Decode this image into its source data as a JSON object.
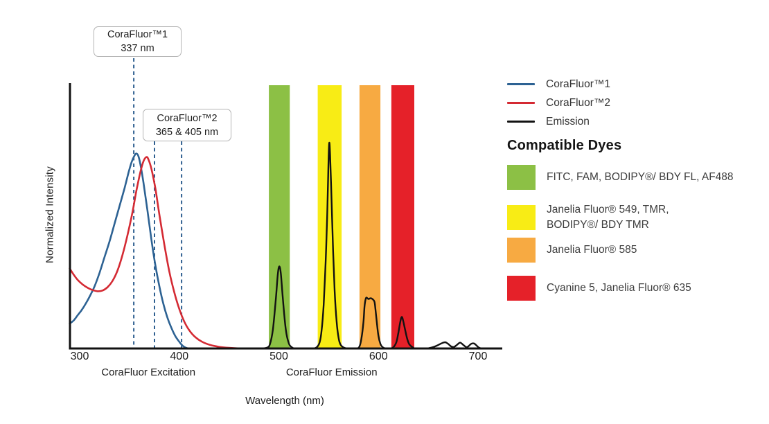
{
  "figure": {
    "type_note": "fluorescence excitation/emission spectra with dye filter bands"
  },
  "chart_data": {
    "type": "line",
    "xlabel": "Wavelength (nm)",
    "ylabel": "Normalized Intensity",
    "x_ticks": [
      300,
      400,
      500,
      600,
      700
    ],
    "xlim": [
      290,
      724
    ],
    "ylim": [
      0,
      1.28
    ],
    "grid": false,
    "region_labels": [
      {
        "text": "CoraFluor Excitation",
        "center_nm": 369
      },
      {
        "text": "CoraFluor Emission",
        "center_nm": 553
      }
    ],
    "series": [
      {
        "name": "CoraFluor™1",
        "color": "#2D6293",
        "style": "solid",
        "points": [
          [
            290,
            0.12
          ],
          [
            294,
            0.135
          ],
          [
            298,
            0.16
          ],
          [
            302,
            0.185
          ],
          [
            306,
            0.215
          ],
          [
            310,
            0.25
          ],
          [
            315,
            0.3
          ],
          [
            320,
            0.365
          ],
          [
            325,
            0.44
          ],
          [
            330,
            0.515
          ],
          [
            335,
            0.6
          ],
          [
            340,
            0.685
          ],
          [
            345,
            0.77
          ],
          [
            349,
            0.845
          ],
          [
            352,
            0.895
          ],
          [
            355,
            0.928
          ],
          [
            357,
            0.938
          ],
          [
            359,
            0.925
          ],
          [
            361,
            0.885
          ],
          [
            364,
            0.8
          ],
          [
            368,
            0.665
          ],
          [
            372,
            0.525
          ],
          [
            376,
            0.4
          ],
          [
            380,
            0.3
          ],
          [
            384,
            0.215
          ],
          [
            388,
            0.15
          ],
          [
            392,
            0.1
          ],
          [
            396,
            0.06
          ],
          [
            400,
            0.032
          ],
          [
            403,
            0.015
          ],
          [
            406,
            0.005
          ],
          [
            409,
            0
          ]
        ]
      },
      {
        "name": "CoraFluor™2",
        "color": "#D42A33",
        "style": "solid",
        "points": [
          [
            290,
            0.385
          ],
          [
            294,
            0.355
          ],
          [
            298,
            0.33
          ],
          [
            303,
            0.308
          ],
          [
            308,
            0.292
          ],
          [
            313,
            0.281
          ],
          [
            318,
            0.2755
          ],
          [
            323,
            0.279
          ],
          [
            328,
            0.295
          ],
          [
            333,
            0.325
          ],
          [
            338,
            0.375
          ],
          [
            343,
            0.45
          ],
          [
            348,
            0.545
          ],
          [
            353,
            0.655
          ],
          [
            357,
            0.76
          ],
          [
            361,
            0.85
          ],
          [
            364,
            0.9
          ],
          [
            367,
            0.921
          ],
          [
            369,
            0.91
          ],
          [
            372,
            0.865
          ],
          [
            376,
            0.77
          ],
          [
            380,
            0.645
          ],
          [
            385,
            0.5
          ],
          [
            390,
            0.37
          ],
          [
            395,
            0.27
          ],
          [
            400,
            0.19
          ],
          [
            405,
            0.13
          ],
          [
            410,
            0.088
          ],
          [
            416,
            0.055
          ],
          [
            423,
            0.032
          ],
          [
            431,
            0.017
          ],
          [
            440,
            0.008
          ],
          [
            450,
            0.003
          ],
          [
            462,
            0
          ]
        ]
      },
      {
        "name": "Emission",
        "color": "#121212",
        "style": "solid",
        "points": [
          [
            482,
            0
          ],
          [
            488,
            0.004
          ],
          [
            491,
            0.02
          ],
          [
            494,
            0.09
          ],
          [
            497,
            0.24
          ],
          [
            499,
            0.36
          ],
          [
            500.5,
            0.395
          ],
          [
            502,
            0.36
          ],
          [
            504,
            0.24
          ],
          [
            507,
            0.09
          ],
          [
            510,
            0.025
          ],
          [
            513,
            0.006
          ],
          [
            517,
            0
          ],
          [
            533,
            0
          ],
          [
            538,
            0.006
          ],
          [
            541,
            0.03
          ],
          [
            543,
            0.09
          ],
          [
            545,
            0.21
          ],
          [
            547,
            0.42
          ],
          [
            548.5,
            0.63
          ],
          [
            549.5,
            0.83
          ],
          [
            550.5,
            0.985
          ],
          [
            551.5,
            0.93
          ],
          [
            553,
            0.7
          ],
          [
            554.5,
            0.47
          ],
          [
            556,
            0.28
          ],
          [
            558,
            0.13
          ],
          [
            560,
            0.05
          ],
          [
            562,
            0.018
          ],
          [
            565,
            0.005
          ],
          [
            569,
            0
          ],
          [
            578,
            0
          ],
          [
            581,
            0.01
          ],
          [
            583,
            0.05
          ],
          [
            585,
            0.13
          ],
          [
            586,
            0.2
          ],
          [
            587,
            0.235
          ],
          [
            588,
            0.245
          ],
          [
            590,
            0.238
          ],
          [
            592,
            0.242
          ],
          [
            594,
            0.238
          ],
          [
            596,
            0.225
          ],
          [
            597,
            0.19
          ],
          [
            598.5,
            0.12
          ],
          [
            600,
            0.06
          ],
          [
            602,
            0.022
          ],
          [
            604,
            0.007
          ],
          [
            607,
            0
          ],
          [
            612,
            0
          ],
          [
            615,
            0.006
          ],
          [
            618,
            0.03
          ],
          [
            620,
            0.075
          ],
          [
            622,
            0.13
          ],
          [
            623.5,
            0.152
          ],
          [
            625,
            0.13
          ],
          [
            627,
            0.085
          ],
          [
            629,
            0.045
          ],
          [
            631,
            0.02
          ],
          [
            634,
            0.007
          ],
          [
            637,
            0
          ],
          [
            648,
            0
          ],
          [
            653,
            0.004
          ],
          [
            658,
            0.012
          ],
          [
            663,
            0.024
          ],
          [
            667,
            0.03
          ],
          [
            670,
            0.022
          ],
          [
            673,
            0.01
          ],
          [
            676,
            0.008
          ],
          [
            679,
            0.018
          ],
          [
            682,
            0.028
          ],
          [
            685,
            0.018
          ],
          [
            688,
            0.007
          ],
          [
            690,
            0.009
          ],
          [
            693,
            0.022
          ],
          [
            696,
            0.024
          ],
          [
            699,
            0.012
          ],
          [
            701,
            0.004
          ],
          [
            704,
            0
          ],
          [
            712,
            0
          ]
        ]
      }
    ],
    "filter_bands": [
      {
        "id": "green",
        "color": "#8CC045",
        "nm_range": [
          490,
          511
        ],
        "dyes": "FITC, FAM, BODIPY®/ BDY FL, AF488"
      },
      {
        "id": "yellow",
        "color": "#F8EC15",
        "nm_range": [
          539,
          563
        ],
        "dyes": "Janelia Fluor® 549, TMR, BODIPY®/ BDY TMR"
      },
      {
        "id": "orange",
        "color": "#F7AA42",
        "nm_range": [
          581,
          602
        ],
        "dyes": "Janelia Fluor® 585"
      },
      {
        "id": "red",
        "color": "#E52129",
        "nm_range": [
          613,
          636
        ],
        "dyes": "Cyanine 5, Janelia Fluor® 635"
      }
    ],
    "annotations": [
      {
        "title": "CoraFluor™1",
        "value": "337 nm",
        "lines_nm": [
          354.3
        ],
        "line_color": "#2D5E8F"
      },
      {
        "title": "CoraFluor™2",
        "value": "365 & 405 nm",
        "lines_nm": [
          375.1,
          402.3
        ],
        "line_color": "#2D5E8F"
      }
    ]
  },
  "legend": {
    "entries": [
      {
        "label": "CoraFluor™1",
        "color": "#2D6293"
      },
      {
        "label": "CoraFluor™2",
        "color": "#D42A33"
      },
      {
        "label": "Emission",
        "color": "#121212"
      }
    ],
    "dyes_heading": "Compatible Dyes",
    "dyes": [
      {
        "color": "#8CC045",
        "label_lines": [
          "FITC, FAM, BODIPY®/ BDY FL, AF488"
        ]
      },
      {
        "color": "#F8EC15",
        "label_lines": [
          "Janelia Fluor® 549, TMR,",
          "BODIPY®/ BDY TMR"
        ]
      },
      {
        "color": "#F7AA42",
        "label_lines": [
          "Janelia Fluor® 585"
        ]
      },
      {
        "color": "#E52129",
        "label_lines": [
          "Cyanine 5, Janelia Fluor® 635"
        ]
      }
    ]
  }
}
